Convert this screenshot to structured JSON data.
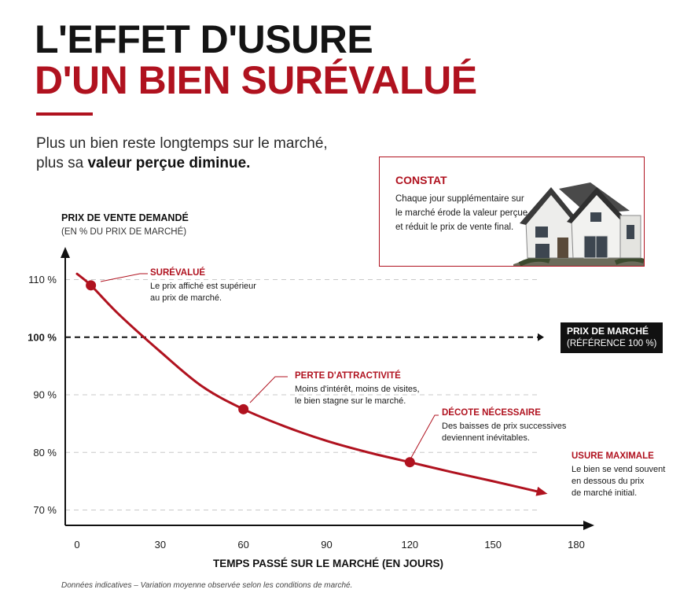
{
  "header": {
    "title_line1": "L'EFFET D'USURE",
    "title_line2": "D'UN BIEN SURÉVALUÉ",
    "subtitle_line1": "Plus un bien reste longtemps sur le marché,",
    "subtitle_line2_start": "plus sa ",
    "subtitle_line2_bold": "valeur perçue diminue."
  },
  "constat": {
    "heading": "CONSTAT",
    "text": "Chaque jour supplémentaire sur le marché érode la valeur perçue et réduit le prix de vente final."
  },
  "axes": {
    "ylabel": "PRIX DE VENTE DEMANDÉ",
    "ylabel_sub": "(EN % DU PRIX DE MARCHÉ)",
    "xlabel": "TEMPS PASSÉ SUR LE MARCHÉ (EN JOURS)"
  },
  "reference": {
    "line1": "PRIX DE MARCHÉ",
    "line2": "(RÉFÉRENCE 100 %)"
  },
  "annotations": [
    {
      "title": "SURÉVALUÉ",
      "text_lines": [
        "Le prix affiché est supérieur",
        "au prix de marché."
      ]
    },
    {
      "title": "PERTE D'ATTRACTIVITÉ",
      "text_lines": [
        "Moins d'intérêt, moins de visites,",
        "le bien stagne sur le marché."
      ]
    },
    {
      "title": "DÉCOTE NÉCESSAIRE",
      "text_lines": [
        "Des baisses de prix successives",
        "deviennent inévitables."
      ]
    },
    {
      "title": "USURE MAXIMALE",
      "text_lines": [
        "Le bien se vend souvent",
        "en dessous du prix",
        "de marché initial."
      ]
    }
  ],
  "footnote": "Données indicatives – Variation moyenne observée selon les conditions de marché.",
  "colors": {
    "accent": "#b0121f",
    "dark": "#111111",
    "grid": "#c8c8c8"
  },
  "chart_data": {
    "type": "line",
    "title": "L'EFFET D'USURE D'UN BIEN SURÉVALUÉ",
    "xlabel": "TEMPS PASSÉ SUR LE MARCHÉ (EN JOURS)",
    "ylabel": "PRIX DE VENTE DEMANDÉ (EN % DU PRIX DE MARCHÉ)",
    "xlim": [
      0,
      180
    ],
    "ylim": [
      68,
      112
    ],
    "x_ticks": [
      0,
      30,
      60,
      90,
      120,
      150,
      180
    ],
    "x_tick_labels": [
      "0",
      "30",
      "60",
      "90",
      "120",
      "150",
      "180"
    ],
    "y_ticks": [
      70,
      80,
      90,
      100,
      110
    ],
    "y_tick_labels": [
      "70 %",
      "80 %",
      "90 %",
      "100 %",
      "110 %"
    ],
    "grid": "horizontal dashed",
    "reference_line": {
      "y": 100,
      "label": "PRIX DE MARCHÉ (RÉFÉRENCE 100 %)"
    },
    "series": [
      {
        "x": [
          0,
          5,
          15,
          30,
          45,
          60,
          75,
          90,
          105,
          120,
          135,
          150,
          168
        ],
        "y": [
          111,
          109,
          104,
          97.5,
          91.5,
          87.5,
          84.5,
          82,
          80,
          78.3,
          76.6,
          75,
          73
        ]
      }
    ],
    "highlighted_points": [
      {
        "x": 5,
        "y": 109,
        "label": "SURÉVALUÉ"
      },
      {
        "x": 60,
        "y": 87.5,
        "label": "PERTE D'ATTRACTIVITÉ"
      },
      {
        "x": 120,
        "y": 78.3,
        "label": "DÉCOTE NÉCESSAIRE"
      },
      {
        "x": 168,
        "y": 73,
        "label": "USURE MAXIMALE"
      }
    ]
  }
}
